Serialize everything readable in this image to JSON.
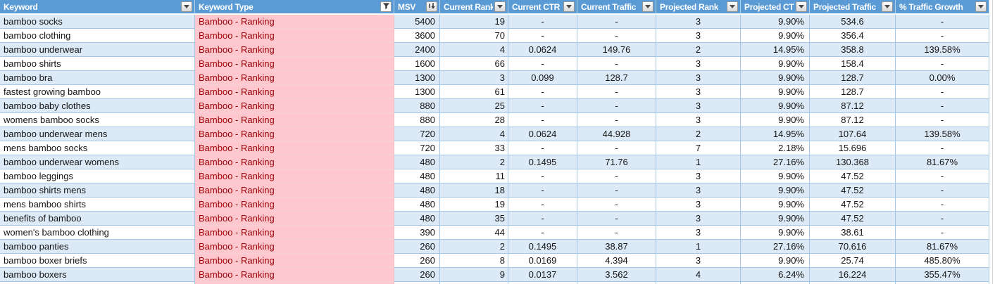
{
  "sheet": {
    "columns": [
      {
        "id": "keyword",
        "label": "Keyword",
        "header_icon": "filter-dropdown"
      },
      {
        "id": "keyword-type",
        "label": "Keyword Type",
        "header_icon": "funnel-filter"
      },
      {
        "id": "msv",
        "label": "MSV",
        "header_icon": "sort-descending"
      },
      {
        "id": "current-rank",
        "label": "Current Rank",
        "header_icon": "filter-dropdown"
      },
      {
        "id": "current-ctr",
        "label": "Current CTR",
        "header_icon": "filter-dropdown"
      },
      {
        "id": "current-traffic",
        "label": "Current Traffic",
        "header_icon": "filter-dropdown"
      },
      {
        "id": "projected-rank",
        "label": "Projected Rank",
        "header_icon": "filter-dropdown"
      },
      {
        "id": "projected-ctr",
        "label": "Projected CTR",
        "header_icon": "filter-dropdown"
      },
      {
        "id": "projected-traffic",
        "label": "Projected Traffic",
        "header_icon": "filter-dropdown"
      },
      {
        "id": "traffic-growth",
        "label": "% Traffic Growth",
        "header_icon": "filter-dropdown"
      }
    ],
    "rows": [
      [
        "bamboo socks",
        "Bamboo - Ranking",
        "5400",
        "19",
        "-",
        "-",
        "3",
        "9.90%",
        "534.6",
        "-"
      ],
      [
        "bamboo clothing",
        "Bamboo - Ranking",
        "3600",
        "70",
        "-",
        "-",
        "3",
        "9.90%",
        "356.4",
        "-"
      ],
      [
        "bamboo underwear",
        "Bamboo - Ranking",
        "2400",
        "4",
        "0.0624",
        "149.76",
        "2",
        "14.95%",
        "358.8",
        "139.58%"
      ],
      [
        "bamboo shirts",
        "Bamboo - Ranking",
        "1600",
        "66",
        "-",
        "-",
        "3",
        "9.90%",
        "158.4",
        "-"
      ],
      [
        "bamboo bra",
        "Bamboo - Ranking",
        "1300",
        "3",
        "0.099",
        "128.7",
        "3",
        "9.90%",
        "128.7",
        "0.00%"
      ],
      [
        "fastest growing bamboo",
        "Bamboo - Ranking",
        "1300",
        "61",
        "-",
        "-",
        "3",
        "9.90%",
        "128.7",
        "-"
      ],
      [
        "bamboo baby clothes",
        "Bamboo - Ranking",
        "880",
        "25",
        "-",
        "-",
        "3",
        "9.90%",
        "87.12",
        "-"
      ],
      [
        "womens bamboo socks",
        "Bamboo - Ranking",
        "880",
        "28",
        "-",
        "-",
        "3",
        "9.90%",
        "87.12",
        "-"
      ],
      [
        "bamboo underwear mens",
        "Bamboo - Ranking",
        "720",
        "4",
        "0.0624",
        "44.928",
        "2",
        "14.95%",
        "107.64",
        "139.58%"
      ],
      [
        "mens bamboo socks",
        "Bamboo - Ranking",
        "720",
        "33",
        "-",
        "-",
        "7",
        "2.18%",
        "15.696",
        "-"
      ],
      [
        "bamboo underwear womens",
        "Bamboo - Ranking",
        "480",
        "2",
        "0.1495",
        "71.76",
        "1",
        "27.16%",
        "130.368",
        "81.67%"
      ],
      [
        "bamboo leggings",
        "Bamboo - Ranking",
        "480",
        "11",
        "-",
        "-",
        "3",
        "9.90%",
        "47.52",
        "-"
      ],
      [
        "bamboo shirts mens",
        "Bamboo - Ranking",
        "480",
        "18",
        "-",
        "-",
        "3",
        "9.90%",
        "47.52",
        "-"
      ],
      [
        "mens bamboo shirts",
        "Bamboo - Ranking",
        "480",
        "19",
        "-",
        "-",
        "3",
        "9.90%",
        "47.52",
        "-"
      ],
      [
        "benefits of bamboo",
        "Bamboo - Ranking",
        "480",
        "35",
        "-",
        "-",
        "3",
        "9.90%",
        "47.52",
        "-"
      ],
      [
        "women's bamboo clothing",
        "Bamboo - Ranking",
        "390",
        "44",
        "-",
        "-",
        "3",
        "9.90%",
        "38.61",
        "-"
      ],
      [
        "bamboo panties",
        "Bamboo - Ranking",
        "260",
        "2",
        "0.1495",
        "38.87",
        "1",
        "27.16%",
        "70.616",
        "81.67%"
      ],
      [
        "bamboo boxer briefs",
        "Bamboo - Ranking",
        "260",
        "8",
        "0.0169",
        "4.394",
        "3",
        "9.90%",
        "25.74",
        "485.80%"
      ],
      [
        "bamboo boxers",
        "Bamboo - Ranking",
        "260",
        "9",
        "0.0137",
        "3.562",
        "4",
        "6.24%",
        "16.224",
        "355.47%"
      ]
    ],
    "colors": {
      "header_bg": "#5B9BD5",
      "header_text": "#FFFFFF",
      "banded_row_bg": "#DCE9F6",
      "plain_row_bg": "#FFFFFF",
      "keyword_type_bg": "#FFC7CE",
      "keyword_type_text": "#9C0006",
      "grid_border": "#A6C6E6"
    }
  }
}
